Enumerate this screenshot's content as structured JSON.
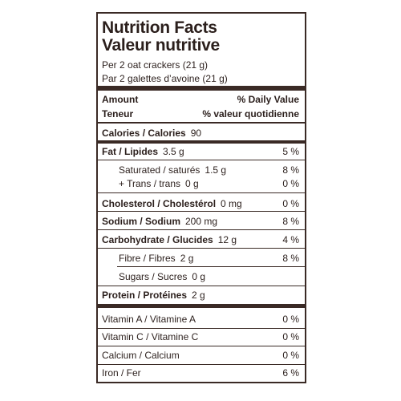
{
  "header": {
    "title_en": "Nutrition Facts",
    "title_fr": "Valeur nutritive",
    "serving_en": "Per 2 oat crackers (21 g)",
    "serving_fr": "Par 2 galettes d’avoine (21 g)"
  },
  "columns": {
    "amount_en": "Amount",
    "amount_fr": "Teneur",
    "dv_en": "% Daily Value",
    "dv_fr": "% valeur quotidienne"
  },
  "nutrients": [
    {
      "name": "Calories / Calories",
      "amount": "90"
    },
    {
      "name": "Fat / Lipides",
      "amount": "3.5 g",
      "dv": "5 %"
    },
    {
      "name": "Saturated / saturés",
      "amount": "1.5 g",
      "dv": "8 %"
    },
    {
      "name": "+ Trans / trans",
      "amount": "0 g",
      "dv": "0 %"
    },
    {
      "name": "Cholesterol / Cholestérol",
      "amount": "0 mg",
      "dv": "0 %"
    },
    {
      "name": "Sodium / Sodium",
      "amount": "200 mg",
      "dv": "8 %"
    },
    {
      "name": "Carbohydrate / Glucides",
      "amount": "12 g",
      "dv": "4 %"
    },
    {
      "name": "Fibre / Fibres",
      "amount": "2 g",
      "dv": "8 %"
    },
    {
      "name": "Sugars / Sucres",
      "amount": "0 g"
    },
    {
      "name": "Protein / Protéines",
      "amount": "2 g"
    }
  ],
  "vitamins": [
    {
      "name": "Vitamin A / Vitamine A",
      "dv": "0 %"
    },
    {
      "name": "Vitamin C / Vitamine C",
      "dv": "0 %"
    },
    {
      "name": "Calcium / Calcium",
      "dv": "0 %"
    },
    {
      "name": "Iron / Fer",
      "dv": "6 %"
    }
  ]
}
